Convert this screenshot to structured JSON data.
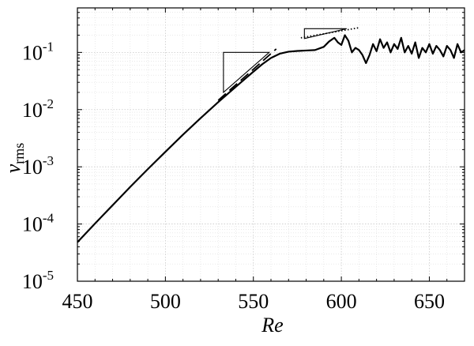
{
  "chart_data": {
    "type": "line",
    "title": "",
    "xlabel": "Re",
    "ylabel": {
      "main": "v",
      "sub": "rms"
    },
    "xlim": [
      450,
      670
    ],
    "ylim": [
      1e-05,
      0.6
    ],
    "y_scale": "log",
    "grid": "on (major and minor, dotted)",
    "legend": "none",
    "x_ticks": [
      {
        "value": 450,
        "label": "450"
      },
      {
        "value": 500,
        "label": "500"
      },
      {
        "value": 550,
        "label": "550"
      },
      {
        "value": 600,
        "label": "600"
      },
      {
        "value": 650,
        "label": "650"
      }
    ],
    "y_ticks": [
      {
        "value": 1e-05,
        "base": "10",
        "exp": "-5"
      },
      {
        "value": 0.0001,
        "base": "10",
        "exp": "-4"
      },
      {
        "value": 0.001,
        "base": "10",
        "exp": "-3"
      },
      {
        "value": 0.01,
        "base": "10",
        "exp": "-2"
      },
      {
        "value": 0.1,
        "base": "10",
        "exp": "-1"
      }
    ],
    "series": [
      {
        "style": "solid",
        "color": "#000000",
        "x": [
          450,
          460,
          470,
          480,
          490,
          500,
          510,
          520,
          530,
          540,
          545,
          550,
          555,
          560,
          565,
          570,
          575,
          580,
          585,
          590,
          593,
          596,
          598,
          600,
          602,
          604,
          606,
          608,
          610,
          612,
          614,
          616,
          618,
          620,
          622,
          624,
          626,
          628,
          630,
          632,
          634,
          636,
          638,
          640,
          642,
          644,
          646,
          648,
          650,
          652,
          654,
          656,
          658,
          660,
          662,
          664,
          666,
          668,
          670
        ],
        "y": [
          4.8e-05,
          0.000102,
          0.000213,
          0.000445,
          0.00091,
          0.00183,
          0.00365,
          0.0071,
          0.0135,
          0.025,
          0.034,
          0.046,
          0.062,
          0.08,
          0.095,
          0.103,
          0.106,
          0.108,
          0.11,
          0.125,
          0.155,
          0.18,
          0.15,
          0.135,
          0.2,
          0.16,
          0.1,
          0.12,
          0.11,
          0.09,
          0.065,
          0.09,
          0.14,
          0.105,
          0.17,
          0.12,
          0.15,
          0.1,
          0.14,
          0.115,
          0.18,
          0.1,
          0.13,
          0.095,
          0.15,
          0.08,
          0.12,
          0.1,
          0.14,
          0.095,
          0.13,
          0.11,
          0.085,
          0.13,
          0.11,
          0.08,
          0.14,
          0.1,
          0.11
        ]
      },
      {
        "style": "dashed",
        "color": "#000000",
        "x": [
          530,
          563
        ],
        "y": [
          0.0145,
          0.115
        ]
      },
      {
        "style": "dotted",
        "color": "#000000",
        "x": [
          577,
          610
        ],
        "y": [
          0.18,
          0.27
        ]
      }
    ],
    "slope_triangles": [
      {
        "x": [
          533,
          533,
          559
        ],
        "y": [
          0.02,
          0.1,
          0.1
        ]
      },
      {
        "x": [
          579,
          579,
          603
        ],
        "y": [
          0.175,
          0.26,
          0.26
        ]
      }
    ]
  }
}
